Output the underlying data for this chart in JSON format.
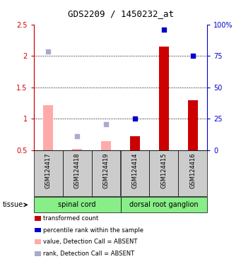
{
  "title": "GDS2209 / 1450232_at",
  "samples": [
    "GSM124417",
    "GSM124418",
    "GSM124419",
    "GSM124414",
    "GSM124415",
    "GSM124416"
  ],
  "bars_present": [
    false,
    false,
    false,
    true,
    true,
    true
  ],
  "bar_values": [
    null,
    null,
    null,
    0.72,
    2.15,
    1.3
  ],
  "bar_color": "#cc0000",
  "absent_bar_values": [
    1.22,
    0.52,
    0.65,
    null,
    null,
    null
  ],
  "absent_bar_color": "#ffaaaa",
  "dot_present": [
    false,
    false,
    false,
    true,
    true,
    true
  ],
  "dot_values_left": [
    null,
    null,
    null,
    1.0,
    2.42,
    2.0
  ],
  "dot_color": "#0000cc",
  "absent_dot_values_left": [
    2.07,
    0.72,
    0.92,
    null,
    null,
    null
  ],
  "absent_dot_color": "#aaaacc",
  "ylim_left": [
    0.5,
    2.5
  ],
  "ylim_right": [
    0,
    100
  ],
  "yticks_left": [
    0.5,
    1.0,
    1.5,
    2.0,
    2.5
  ],
  "ytick_labels_left": [
    "0.5",
    "1",
    "1.5",
    "2",
    "2.5"
  ],
  "yticks_right_vals": [
    0,
    25,
    50,
    75,
    100
  ],
  "ytick_labels_right": [
    "0",
    "25",
    "50",
    "75",
    "100%"
  ],
  "dotted_lines": [
    1.0,
    1.5,
    2.0
  ],
  "bar_width": 0.35,
  "tissue_label": "tissue",
  "tissue_bg": "#88ee88",
  "sample_bg": "#cccccc",
  "tissue_regions": [
    {
      "xmin": -0.5,
      "xmax": 2.5,
      "label": "spinal cord"
    },
    {
      "xmin": 2.5,
      "xmax": 5.5,
      "label": "dorsal root ganglion"
    }
  ],
  "legend_items": [
    {
      "label": "transformed count",
      "color": "#cc0000"
    },
    {
      "label": "percentile rank within the sample",
      "color": "#0000cc"
    },
    {
      "label": "value, Detection Call = ABSENT",
      "color": "#ffaaaa"
    },
    {
      "label": "rank, Detection Call = ABSENT",
      "color": "#aaaacc"
    }
  ],
  "left_axis_color": "#cc0000",
  "right_axis_color": "#0000cc",
  "fig_width": 3.41,
  "fig_height": 3.84,
  "dpi": 100
}
